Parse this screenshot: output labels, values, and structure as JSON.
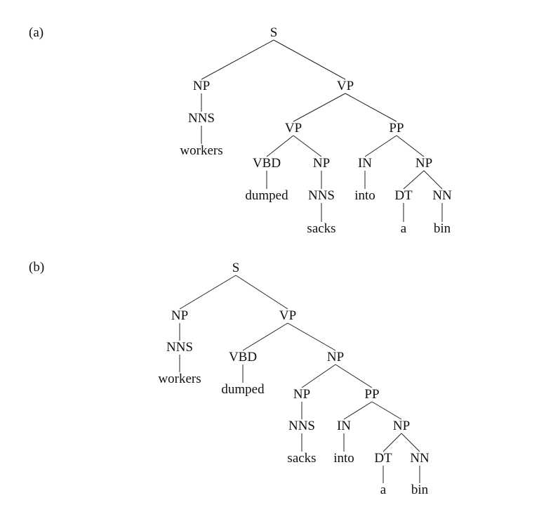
{
  "panels": [
    {
      "label": "(a)",
      "nodes": [
        {
          "id": "S",
          "text": "S",
          "children": [
            "NP1",
            "VP1"
          ]
        },
        {
          "id": "NP1",
          "text": "NP",
          "children": [
            "NNS1"
          ]
        },
        {
          "id": "NNS1",
          "text": "NNS",
          "children": [
            "w1"
          ]
        },
        {
          "id": "w1",
          "text": "workers",
          "children": []
        },
        {
          "id": "VP1",
          "text": "VP",
          "children": [
            "VP2",
            "PP1"
          ]
        },
        {
          "id": "VP2",
          "text": "VP",
          "children": [
            "VBD1",
            "NP2"
          ]
        },
        {
          "id": "VBD1",
          "text": "VBD",
          "children": [
            "w2"
          ]
        },
        {
          "id": "w2",
          "text": "dumped",
          "children": []
        },
        {
          "id": "NP2",
          "text": "NP",
          "children": [
            "NNS2"
          ]
        },
        {
          "id": "NNS2",
          "text": "NNS",
          "children": [
            "w3"
          ]
        },
        {
          "id": "w3",
          "text": "sacks",
          "children": []
        },
        {
          "id": "PP1",
          "text": "PP",
          "children": [
            "IN1",
            "NP3"
          ]
        },
        {
          "id": "IN1",
          "text": "IN",
          "children": [
            "w4"
          ]
        },
        {
          "id": "w4",
          "text": "into",
          "children": []
        },
        {
          "id": "NP3",
          "text": "NP",
          "children": [
            "DT1",
            "NN1"
          ]
        },
        {
          "id": "DT1",
          "text": "DT",
          "children": [
            "w5"
          ]
        },
        {
          "id": "w5",
          "text": "a",
          "children": []
        },
        {
          "id": "NN1",
          "text": "NN",
          "children": [
            "w6"
          ]
        },
        {
          "id": "w6",
          "text": "bin",
          "children": []
        }
      ]
    },
    {
      "label": "(b)",
      "nodes": [
        {
          "id": "S",
          "text": "S",
          "children": [
            "NP1",
            "VP1"
          ]
        },
        {
          "id": "NP1",
          "text": "NP",
          "children": [
            "NNS1"
          ]
        },
        {
          "id": "NNS1",
          "text": "NNS",
          "children": [
            "w1"
          ]
        },
        {
          "id": "w1",
          "text": "workers",
          "children": []
        },
        {
          "id": "VP1",
          "text": "VP",
          "children": [
            "VBD1",
            "NP2"
          ]
        },
        {
          "id": "VBD1",
          "text": "VBD",
          "children": [
            "w2"
          ]
        },
        {
          "id": "w2",
          "text": "dumped",
          "children": []
        },
        {
          "id": "NP2",
          "text": "NP",
          "children": [
            "NP3",
            "PP1"
          ]
        },
        {
          "id": "NP3",
          "text": "NP",
          "children": [
            "NNS2"
          ]
        },
        {
          "id": "NNS2",
          "text": "NNS",
          "children": [
            "w3"
          ]
        },
        {
          "id": "w3",
          "text": "sacks",
          "children": []
        },
        {
          "id": "PP1",
          "text": "PP",
          "children": [
            "IN1",
            "NP4"
          ]
        },
        {
          "id": "IN1",
          "text": "IN",
          "children": [
            "w4"
          ]
        },
        {
          "id": "w4",
          "text": "into",
          "children": []
        },
        {
          "id": "NP4",
          "text": "NP",
          "children": [
            "DT1",
            "NN1"
          ]
        },
        {
          "id": "DT1",
          "text": "DT",
          "children": [
            "w5"
          ]
        },
        {
          "id": "w5",
          "text": "a",
          "children": []
        },
        {
          "id": "NN1",
          "text": "NN",
          "children": [
            "w6"
          ]
        },
        {
          "id": "w6",
          "text": "bin",
          "children": []
        }
      ]
    }
  ]
}
